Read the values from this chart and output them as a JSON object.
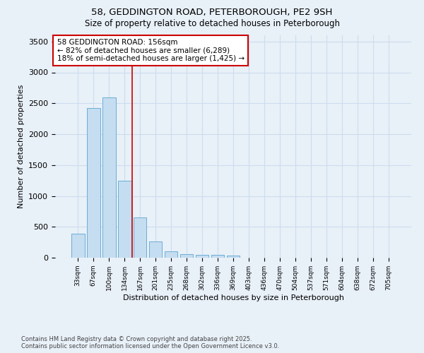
{
  "title_line1": "58, GEDDINGTON ROAD, PETERBOROUGH, PE2 9SH",
  "title_line2": "Size of property relative to detached houses in Peterborough",
  "xlabel": "Distribution of detached houses by size in Peterborough",
  "ylabel": "Number of detached properties",
  "categories": [
    "33sqm",
    "67sqm",
    "100sqm",
    "134sqm",
    "167sqm",
    "201sqm",
    "235sqm",
    "268sqm",
    "302sqm",
    "336sqm",
    "369sqm",
    "403sqm",
    "436sqm",
    "470sqm",
    "504sqm",
    "537sqm",
    "571sqm",
    "604sqm",
    "638sqm",
    "672sqm",
    "705sqm"
  ],
  "values": [
    390,
    2420,
    2600,
    1250,
    650,
    260,
    100,
    55,
    50,
    45,
    30,
    0,
    0,
    0,
    0,
    0,
    0,
    0,
    0,
    0,
    0
  ],
  "bar_color": "#c5ddf0",
  "bar_edge_color": "#6aaed6",
  "grid_color": "#ccddee",
  "vline_color": "#cc0000",
  "vline_x_index": 4,
  "annotation_box_text": "58 GEDDINGTON ROAD: 156sqm\n← 82% of detached houses are smaller (6,289)\n18% of semi-detached houses are larger (1,425) →",
  "annotation_box_color": "#cc0000",
  "ylim": [
    0,
    3600
  ],
  "yticks": [
    0,
    500,
    1000,
    1500,
    2000,
    2500,
    3000,
    3500
  ],
  "footer_line1": "Contains HM Land Registry data © Crown copyright and database right 2025.",
  "footer_line2": "Contains public sector information licensed under the Open Government Licence v3.0.",
  "bg_color": "#e8f0f8",
  "plot_bg_color": "#e8f0f8"
}
